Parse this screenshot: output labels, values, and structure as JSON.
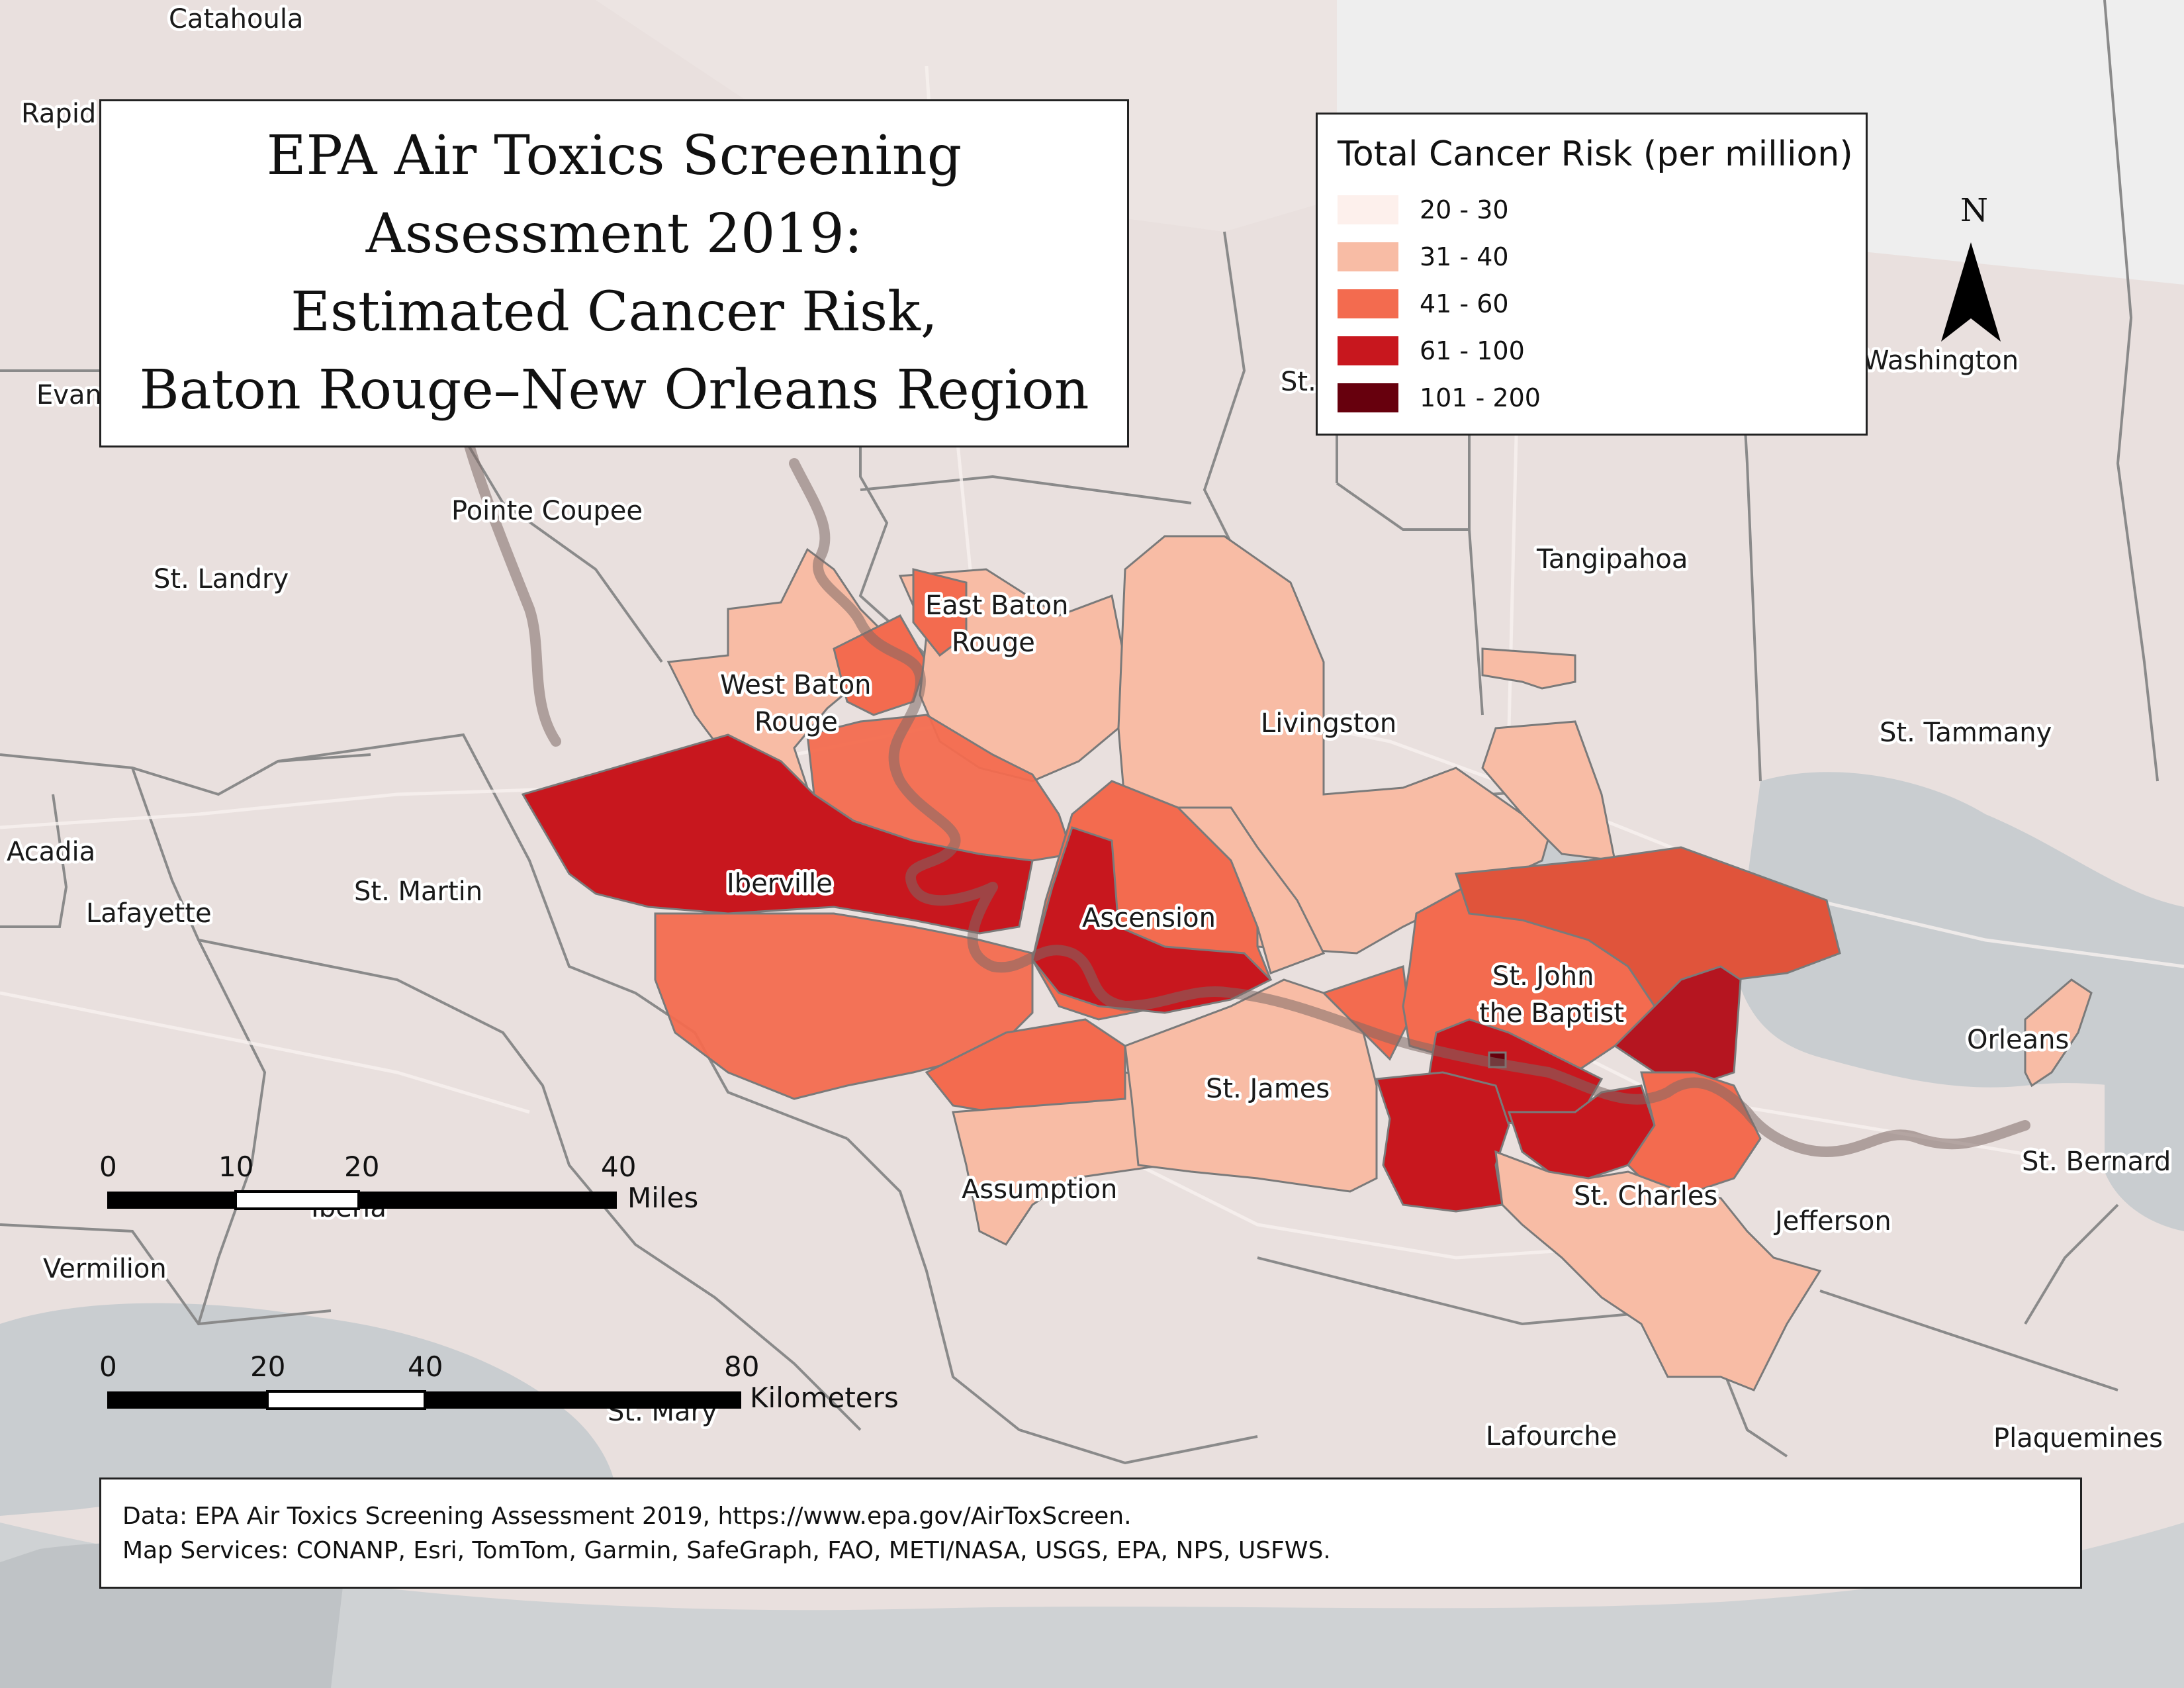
{
  "title": {
    "lines": [
      "EPA Air Toxics Screening",
      "Assessment 2019:",
      "Estimated Cancer Risk,",
      "Baton Rouge–New Orleans Region"
    ]
  },
  "legend": {
    "title": "Total Cancer Risk (per million)",
    "items": [
      {
        "label": "20 - 30",
        "color": "#fdf0ec"
      },
      {
        "label": "31 - 40",
        "color": "#f8bca5"
      },
      {
        "label": "41 - 60",
        "color": "#f36b4f"
      },
      {
        "label": "61 - 100",
        "color": "#c8171e"
      },
      {
        "label": "101 - 200",
        "color": "#67000d"
      }
    ]
  },
  "north_arrow": {
    "letter": "N"
  },
  "scale_bars": {
    "miles": {
      "ticks": [
        "0",
        "10",
        "20",
        "40"
      ],
      "unit": "Miles"
    },
    "kilometers": {
      "ticks": [
        "0",
        "20",
        "40",
        "80"
      ],
      "unit": "Kilometers"
    }
  },
  "place_labels": [
    "Catahoula",
    "Rapid",
    "Evan",
    "Pointe Coupee",
    "St. Landry",
    "Acadia",
    "Lafayette",
    "St. Martin",
    "Vermilion",
    "Iberia",
    "St. Mary",
    "West Baton",
    "Rouge",
    "East Baton",
    "Rouge",
    "Iberville",
    "Ascension",
    "Livingston",
    "Tangipahoa",
    "St.",
    "Washington",
    "St. Tammany",
    "St. John",
    "the Baptist",
    "St. James",
    "Assumption",
    "St. Charles",
    "Orleans",
    "St. Bernard",
    "Jefferson",
    "Lafourche",
    "Plaquemines"
  ],
  "credits": {
    "data": "Data: EPA Air Toxics Screening Assessment 2019, https://www.epa.gov/AirToxScreen.",
    "services": "Map Services: CONANP, Esri, TomTom, Garmin, SafeGraph, FAO, METI/NASA, USGS, EPA, NPS, USFWS."
  }
}
